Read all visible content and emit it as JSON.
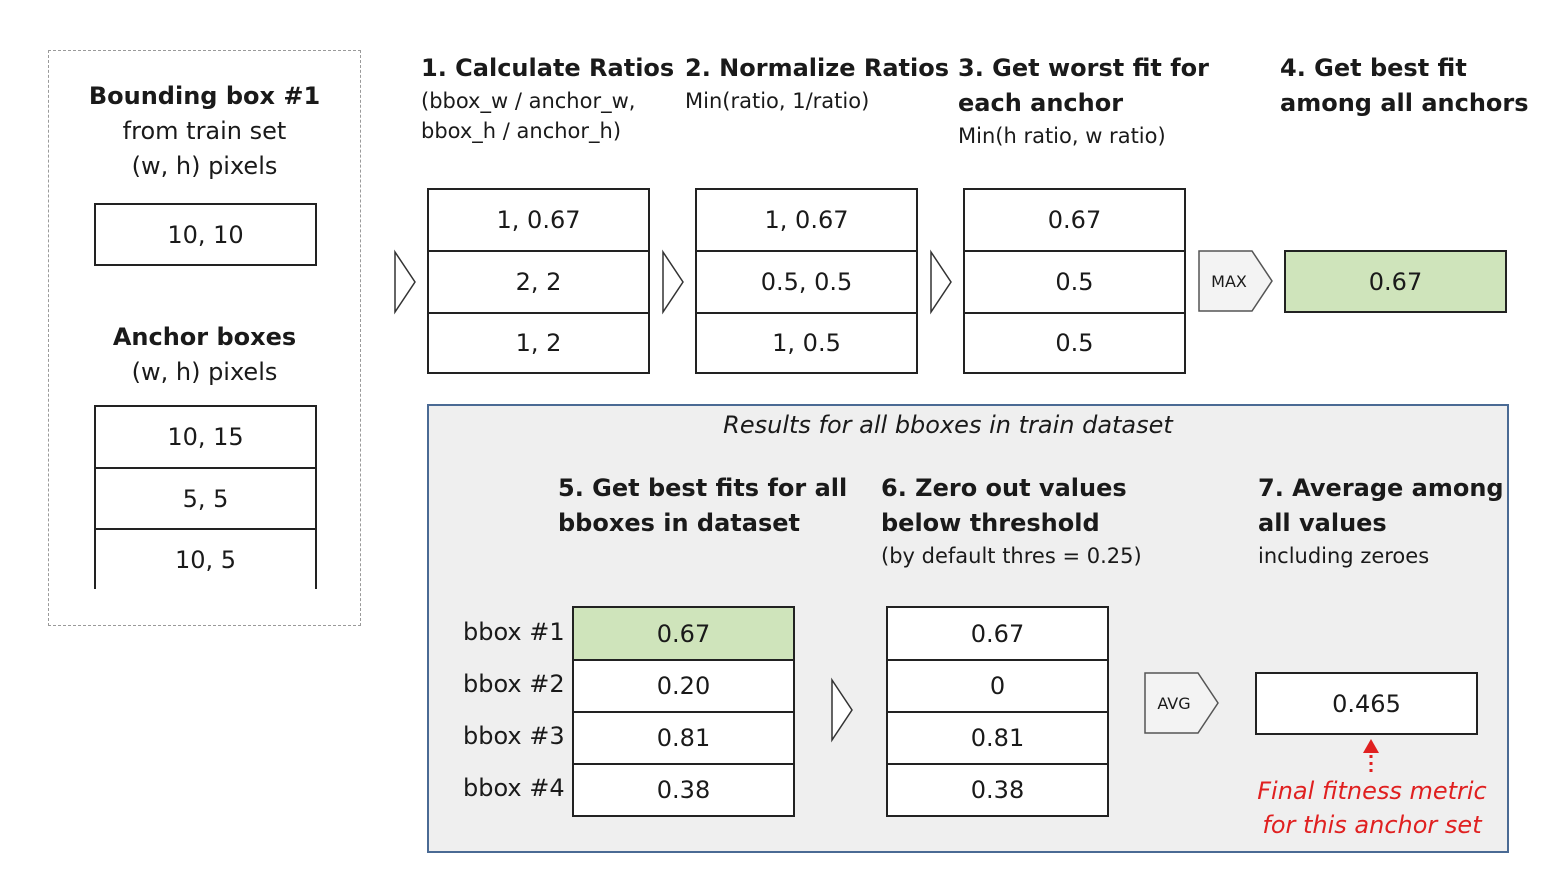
{
  "input": {
    "bbox_title": "Bounding box #1",
    "bbox_sub1": "from train set",
    "bbox_sub2": "(w, h) pixels",
    "bbox_value": "10, 10",
    "anchor_title": "Anchor boxes",
    "anchor_sub": "(w, h) pixels",
    "anchors": [
      "10, 15",
      "5, 5",
      "10, 5"
    ]
  },
  "steps": {
    "s1": {
      "title": "1. Calculate Ratios",
      "sub1": "(bbox_w / anchor_w,",
      "sub2": "bbox_h / anchor_h)",
      "values": [
        "1, 0.67",
        "2, 2",
        "1, 2"
      ]
    },
    "s2": {
      "title": "2. Normalize Ratios",
      "sub1": "Min(ratio, 1/ratio)",
      "values": [
        "1, 0.67",
        "0.5, 0.5",
        "1, 0.5"
      ]
    },
    "s3": {
      "title1": "3. Get worst fit for",
      "title2": "each anchor",
      "sub1": "Min(h ratio, w ratio)",
      "values": [
        "0.67",
        "0.5",
        "0.5"
      ]
    },
    "s4": {
      "title1": "4. Get best fit",
      "title2": "among all anchors",
      "value": "0.67"
    }
  },
  "ops": {
    "max": "MAX",
    "avg": "AVG"
  },
  "results": {
    "panel_title": "Results for all bboxes in train dataset",
    "s5": {
      "title1": "5. Get best fits for all",
      "title2": "bboxes in dataset",
      "values": [
        "0.67",
        "0.20",
        "0.81",
        "0.38"
      ]
    },
    "s6": {
      "title1": "6. Zero out values",
      "title2": "below threshold",
      "sub1": "(by default thres = 0.25)",
      "values": [
        "0.67",
        "0",
        "0.81",
        "0.38"
      ]
    },
    "s7": {
      "title1": "7. Average among",
      "title2": "all values",
      "sub1": "including zeroes",
      "value": "0.465"
    },
    "row_labels": [
      "bbox #1",
      "bbox #2",
      "bbox #3",
      "bbox #4"
    ],
    "final_note1": "Final fitness metric",
    "final_note2": "for this anchor set"
  },
  "colors": {
    "highlight": "#cfe4bb",
    "panel_border": "#4a6a94",
    "panel_bg": "#efefef",
    "note": "#e02020"
  }
}
